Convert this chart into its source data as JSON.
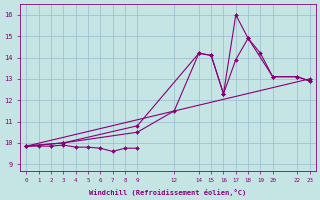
{
  "bg_color": "#c5e5e5",
  "line_color": "#880077",
  "grid_color": "#99bbcc",
  "xlabel": "Windchill (Refroidissement éolien,°C)",
  "xtick_vals": [
    0,
    1,
    2,
    3,
    4,
    5,
    6,
    7,
    8,
    9,
    12,
    14,
    15,
    16,
    17,
    18,
    19,
    20,
    22,
    23
  ],
  "ytick_vals": [
    9,
    10,
    11,
    12,
    13,
    14,
    15,
    16
  ],
  "xlim": [
    -0.5,
    23.5
  ],
  "ylim": [
    8.7,
    16.5
  ],
  "series": [
    {
      "x": [
        0,
        1,
        2,
        3,
        4,
        5,
        6,
        7,
        8,
        9
      ],
      "y": [
        9.85,
        9.85,
        9.85,
        9.9,
        9.8,
        9.8,
        9.75,
        9.6,
        9.75,
        9.75
      ]
    },
    {
      "x": [
        0,
        3,
        9,
        12,
        14,
        15,
        16,
        17,
        18,
        19,
        20,
        22,
        23
      ],
      "y": [
        9.85,
        10.0,
        10.5,
        11.5,
        14.2,
        14.1,
        12.3,
        13.9,
        14.9,
        14.2,
        13.1,
        13.1,
        12.9
      ]
    },
    {
      "x": [
        0,
        3,
        9,
        14,
        15,
        16,
        17,
        18,
        20,
        22,
        23
      ],
      "y": [
        9.85,
        10.0,
        10.8,
        14.2,
        14.1,
        12.3,
        16.0,
        14.9,
        13.1,
        13.1,
        12.9
      ]
    },
    {
      "x": [
        0,
        23
      ],
      "y": [
        9.85,
        13.0
      ]
    }
  ]
}
